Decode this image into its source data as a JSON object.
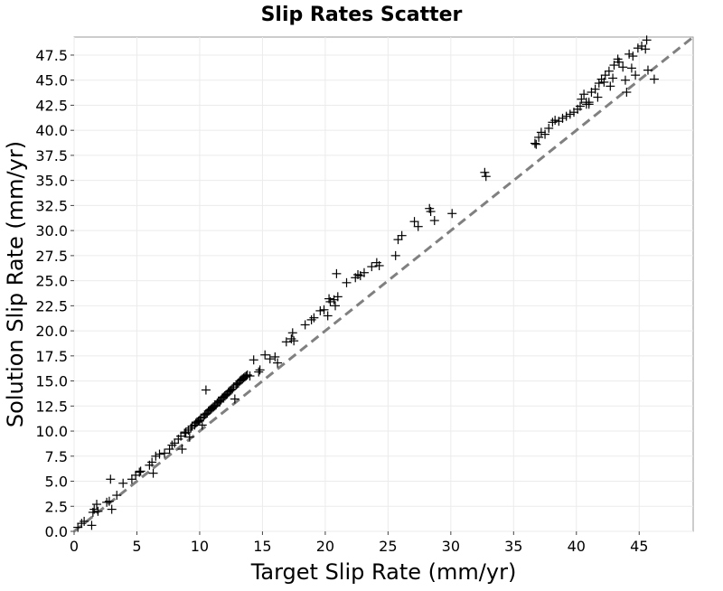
{
  "chart_data": {
    "type": "scatter",
    "title": "Slip Rates Scatter",
    "xlabel": "Target Slip Rate (mm/yr)",
    "ylabel": "Solution Slip Rate (mm/yr)",
    "xlim": [
      0,
      49.3
    ],
    "ylim": [
      0,
      49.3
    ],
    "grid": true,
    "marker": "plus",
    "x_ticks": [
      "0",
      "5",
      "10",
      "15",
      "20",
      "25",
      "30",
      "35",
      "40",
      "45"
    ],
    "y_ticks": [
      "0.0",
      "2.5",
      "5.0",
      "7.5",
      "10.0",
      "12.5",
      "15.0",
      "17.5",
      "20.0",
      "22.5",
      "25.0",
      "27.5",
      "30.0",
      "32.5",
      "35.0",
      "37.5",
      "40.0",
      "42.5",
      "45.0",
      "47.5"
    ],
    "reference_line": {
      "x": [
        0,
        49.3
      ],
      "y": [
        0,
        49.3
      ],
      "style": "dashed",
      "color": "#808080"
    },
    "series": [
      {
        "color": "#000000",
        "points": [
          [
            0.3,
            0.4
          ],
          [
            0.6,
            0.8
          ],
          [
            0.8,
            1.0
          ],
          [
            1.4,
            0.6
          ],
          [
            1.5,
            1.9
          ],
          [
            1.6,
            2.2
          ],
          [
            1.8,
            2.7
          ],
          [
            1.9,
            2.0
          ],
          [
            2.6,
            2.9
          ],
          [
            2.8,
            3.0
          ],
          [
            2.9,
            5.2
          ],
          [
            3.0,
            2.2
          ],
          [
            3.4,
            3.6
          ],
          [
            3.9,
            4.8
          ],
          [
            4.6,
            5.2
          ],
          [
            4.9,
            5.6
          ],
          [
            5.2,
            5.9
          ],
          [
            5.3,
            6.0
          ],
          [
            6.0,
            6.6
          ],
          [
            6.2,
            6.9
          ],
          [
            6.3,
            5.8
          ],
          [
            6.5,
            7.5
          ],
          [
            6.8,
            7.7
          ],
          [
            7.2,
            7.8
          ],
          [
            7.6,
            8.2
          ],
          [
            7.8,
            8.6
          ],
          [
            8.0,
            8.8
          ],
          [
            8.3,
            9.2
          ],
          [
            8.5,
            9.5
          ],
          [
            8.6,
            8.2
          ],
          [
            8.8,
            9.8
          ],
          [
            8.9,
            9.9
          ],
          [
            9.1,
            10.1
          ],
          [
            9.2,
            9.4
          ],
          [
            9.3,
            10.3
          ],
          [
            9.4,
            10.5
          ],
          [
            9.6,
            10.6
          ],
          [
            9.7,
            10.8
          ],
          [
            9.8,
            10.9
          ],
          [
            9.9,
            11.0
          ],
          [
            10.0,
            11.1
          ],
          [
            10.1,
            11.3
          ],
          [
            10.2,
            10.6
          ],
          [
            10.3,
            11.4
          ],
          [
            10.4,
            11.6
          ],
          [
            10.5,
            11.7
          ],
          [
            10.5,
            14.1
          ],
          [
            10.6,
            11.8
          ],
          [
            10.7,
            12.0
          ],
          [
            10.8,
            12.1
          ],
          [
            10.9,
            12.2
          ],
          [
            11.0,
            12.3
          ],
          [
            11.1,
            12.4
          ],
          [
            11.2,
            12.5
          ],
          [
            11.3,
            12.6
          ],
          [
            11.4,
            12.8
          ],
          [
            11.5,
            13.0
          ],
          [
            11.6,
            12.9
          ],
          [
            11.7,
            13.1
          ],
          [
            11.8,
            13.3
          ],
          [
            11.9,
            13.4
          ],
          [
            12.0,
            13.5
          ],
          [
            12.1,
            13.6
          ],
          [
            12.2,
            13.7
          ],
          [
            12.3,
            13.9
          ],
          [
            12.4,
            14.0
          ],
          [
            12.5,
            14.1
          ],
          [
            12.6,
            14.2
          ],
          [
            12.7,
            14.4
          ],
          [
            12.8,
            13.2
          ],
          [
            12.9,
            14.6
          ],
          [
            13.0,
            14.7
          ],
          [
            13.1,
            14.8
          ],
          [
            13.2,
            15.0
          ],
          [
            13.3,
            15.1
          ],
          [
            13.4,
            15.2
          ],
          [
            13.5,
            15.3
          ],
          [
            13.6,
            15.4
          ],
          [
            13.7,
            15.5
          ],
          [
            13.8,
            15.6
          ],
          [
            14.0,
            15.5
          ],
          [
            14.3,
            17.1
          ],
          [
            14.7,
            15.9
          ],
          [
            14.8,
            16.1
          ],
          [
            15.2,
            17.6
          ],
          [
            15.6,
            17.2
          ],
          [
            16.0,
            17.4
          ],
          [
            16.2,
            16.8
          ],
          [
            16.9,
            18.9
          ],
          [
            17.3,
            19.2
          ],
          [
            17.4,
            19.8
          ],
          [
            17.5,
            19.0
          ],
          [
            18.4,
            20.6
          ],
          [
            18.9,
            21.1
          ],
          [
            19.1,
            21.3
          ],
          [
            19.6,
            22.0
          ],
          [
            19.9,
            22.1
          ],
          [
            20.2,
            21.5
          ],
          [
            20.3,
            23.2
          ],
          [
            20.4,
            22.9
          ],
          [
            20.7,
            23.1
          ],
          [
            20.8,
            22.5
          ],
          [
            20.9,
            25.7
          ],
          [
            21.0,
            23.4
          ],
          [
            21.7,
            24.8
          ],
          [
            22.4,
            25.3
          ],
          [
            22.6,
            25.6
          ],
          [
            22.8,
            25.5
          ],
          [
            23.1,
            25.8
          ],
          [
            23.7,
            26.4
          ],
          [
            24.1,
            26.8
          ],
          [
            24.3,
            26.5
          ],
          [
            25.6,
            27.5
          ],
          [
            25.8,
            29.1
          ],
          [
            26.1,
            29.5
          ],
          [
            27.1,
            30.9
          ],
          [
            27.4,
            30.4
          ],
          [
            28.3,
            32.2
          ],
          [
            28.4,
            31.9
          ],
          [
            28.7,
            31.0
          ],
          [
            30.1,
            31.7
          ],
          [
            32.7,
            35.8
          ],
          [
            32.8,
            35.4
          ],
          [
            36.7,
            38.7
          ],
          [
            36.8,
            38.6
          ],
          [
            37.0,
            39.3
          ],
          [
            37.2,
            39.8
          ],
          [
            37.5,
            39.6
          ],
          [
            37.8,
            40.2
          ],
          [
            38.1,
            40.8
          ],
          [
            38.3,
            41.0
          ],
          [
            38.6,
            40.9
          ],
          [
            38.9,
            41.2
          ],
          [
            39.2,
            41.4
          ],
          [
            39.5,
            41.6
          ],
          [
            39.8,
            41.8
          ],
          [
            40.1,
            42.1
          ],
          [
            40.3,
            42.4
          ],
          [
            40.4,
            43.1
          ],
          [
            40.6,
            43.6
          ],
          [
            40.8,
            42.8
          ],
          [
            41.0,
            42.6
          ],
          [
            41.2,
            43.8
          ],
          [
            41.5,
            44.1
          ],
          [
            41.7,
            43.3
          ],
          [
            41.8,
            44.7
          ],
          [
            42.0,
            45.1
          ],
          [
            42.2,
            44.8
          ],
          [
            42.3,
            45.5
          ],
          [
            42.6,
            45.9
          ],
          [
            42.7,
            44.4
          ],
          [
            42.9,
            45.2
          ],
          [
            43.0,
            46.5
          ],
          [
            43.3,
            47.1
          ],
          [
            43.4,
            46.8
          ],
          [
            43.7,
            46.3
          ],
          [
            43.9,
            45.0
          ],
          [
            44.2,
            47.6
          ],
          [
            44.4,
            46.2
          ],
          [
            44.5,
            47.4
          ],
          [
            44.7,
            45.5
          ],
          [
            44.9,
            48.2
          ],
          [
            45.2,
            48.4
          ],
          [
            45.5,
            48.1
          ],
          [
            45.6,
            49.0
          ],
          [
            45.7,
            46.0
          ],
          [
            46.2,
            45.1
          ],
          [
            44.0,
            43.8
          ],
          [
            40.8,
            42.6
          ],
          [
            41.0,
            42.8
          ]
        ]
      }
    ]
  }
}
